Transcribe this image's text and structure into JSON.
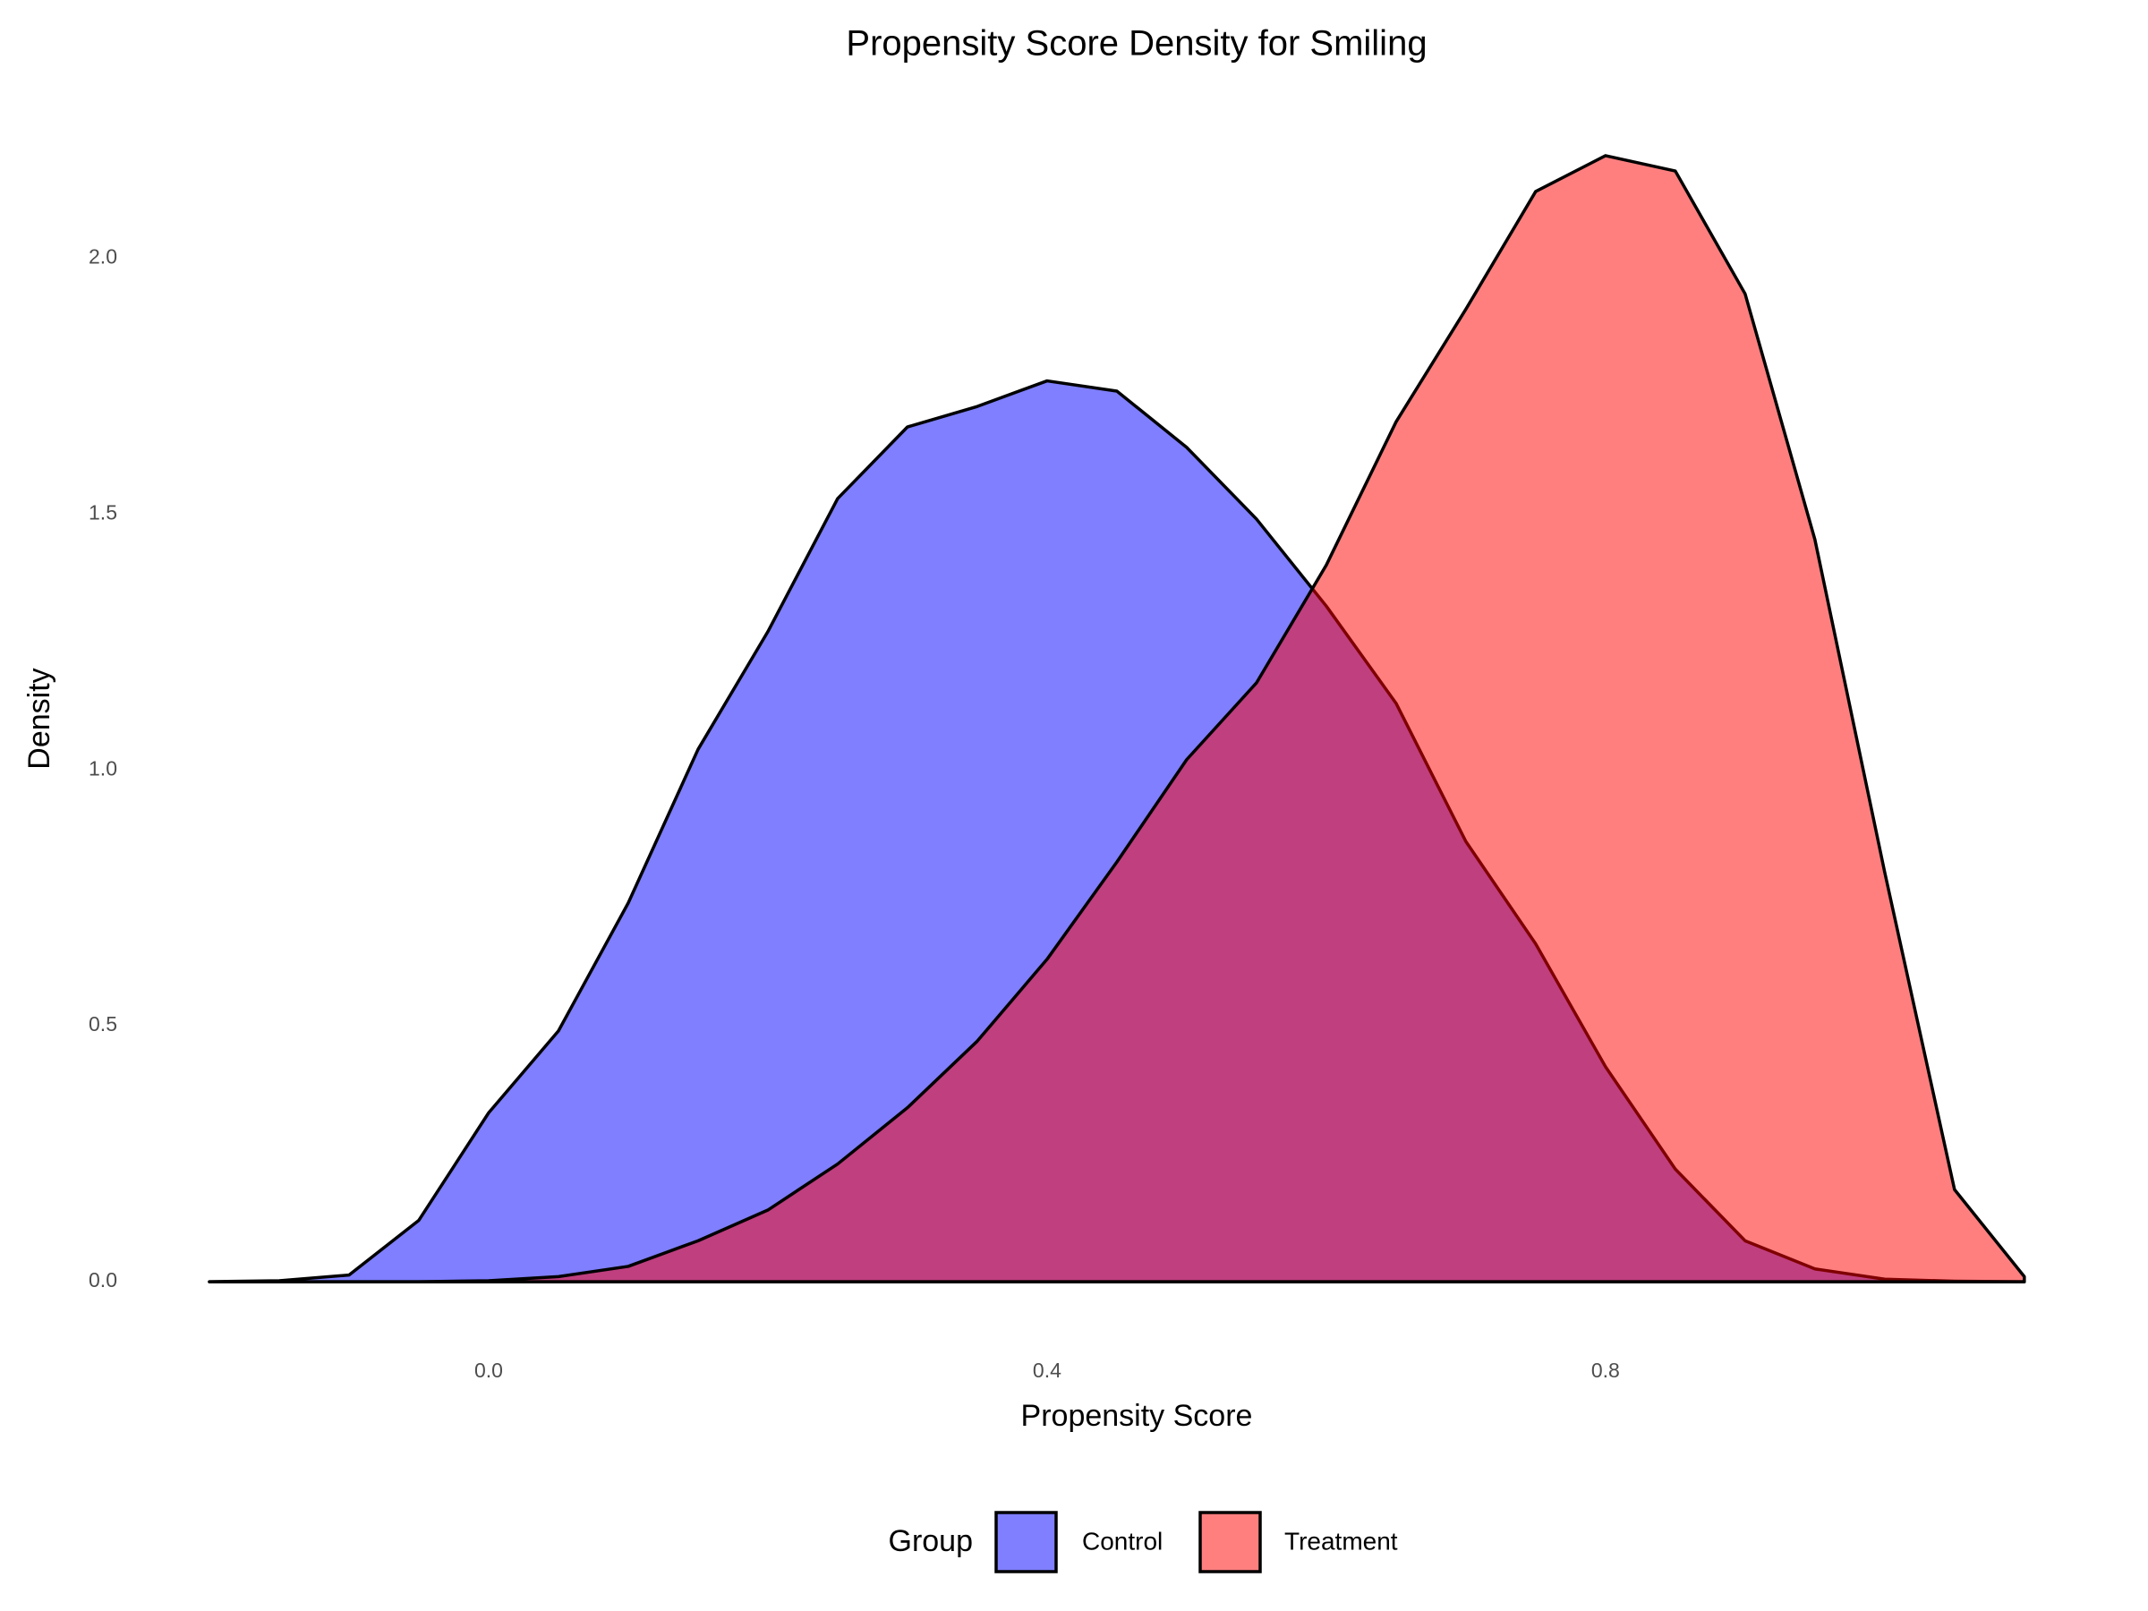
{
  "chart_data": {
    "type": "area",
    "title": "Propensity Score Density for Smiling",
    "x_label": "Propensity Score",
    "y_label": "Density",
    "legend_title": "Group",
    "legend_position": "bottom",
    "grid": false,
    "fill_opacity": 0.5,
    "x": [
      -0.2,
      -0.15,
      -0.1,
      -0.05,
      0.0,
      0.05,
      0.1,
      0.15,
      0.2,
      0.25,
      0.3,
      0.35,
      0.4,
      0.45,
      0.5,
      0.55,
      0.6,
      0.65,
      0.7,
      0.75,
      0.8,
      0.85,
      0.9,
      0.95,
      1.0,
      1.05,
      1.1
    ],
    "series": [
      {
        "name": "Control",
        "color": "#0000ff",
        "values": [
          0,
          0.002,
          0.013,
          0.12,
          0.33,
          0.49,
          0.74,
          1.04,
          1.27,
          1.53,
          1.67,
          1.71,
          1.76,
          1.74,
          1.63,
          1.49,
          1.32,
          1.13,
          0.86,
          0.66,
          0.42,
          0.22,
          0.08,
          0.025,
          0.005,
          0.001,
          0
        ]
      },
      {
        "name": "Treatment",
        "color": "#ff0000",
        "values": [
          0,
          0,
          0,
          0,
          0.002,
          0.01,
          0.03,
          0.08,
          0.14,
          0.23,
          0.34,
          0.47,
          0.63,
          0.82,
          1.02,
          1.17,
          1.4,
          1.68,
          1.9,
          2.13,
          2.2,
          2.17,
          1.93,
          1.45,
          0.8,
          0.18,
          0.01
        ]
      }
    ],
    "xlim": [
      -0.25,
      1.17
    ],
    "xticks": [
      {
        "value": 0,
        "label": "0.0"
      },
      0.4,
      0.8
    ],
    "ylim": [
      -0.11,
      2.31
    ],
    "yticks": [
      {
        "value": 0,
        "label": "0.0"
      },
      0.5,
      {
        "value": 1,
        "label": "1.0"
      },
      1.5,
      {
        "value": 2,
        "label": "2.0"
      }
    ]
  }
}
